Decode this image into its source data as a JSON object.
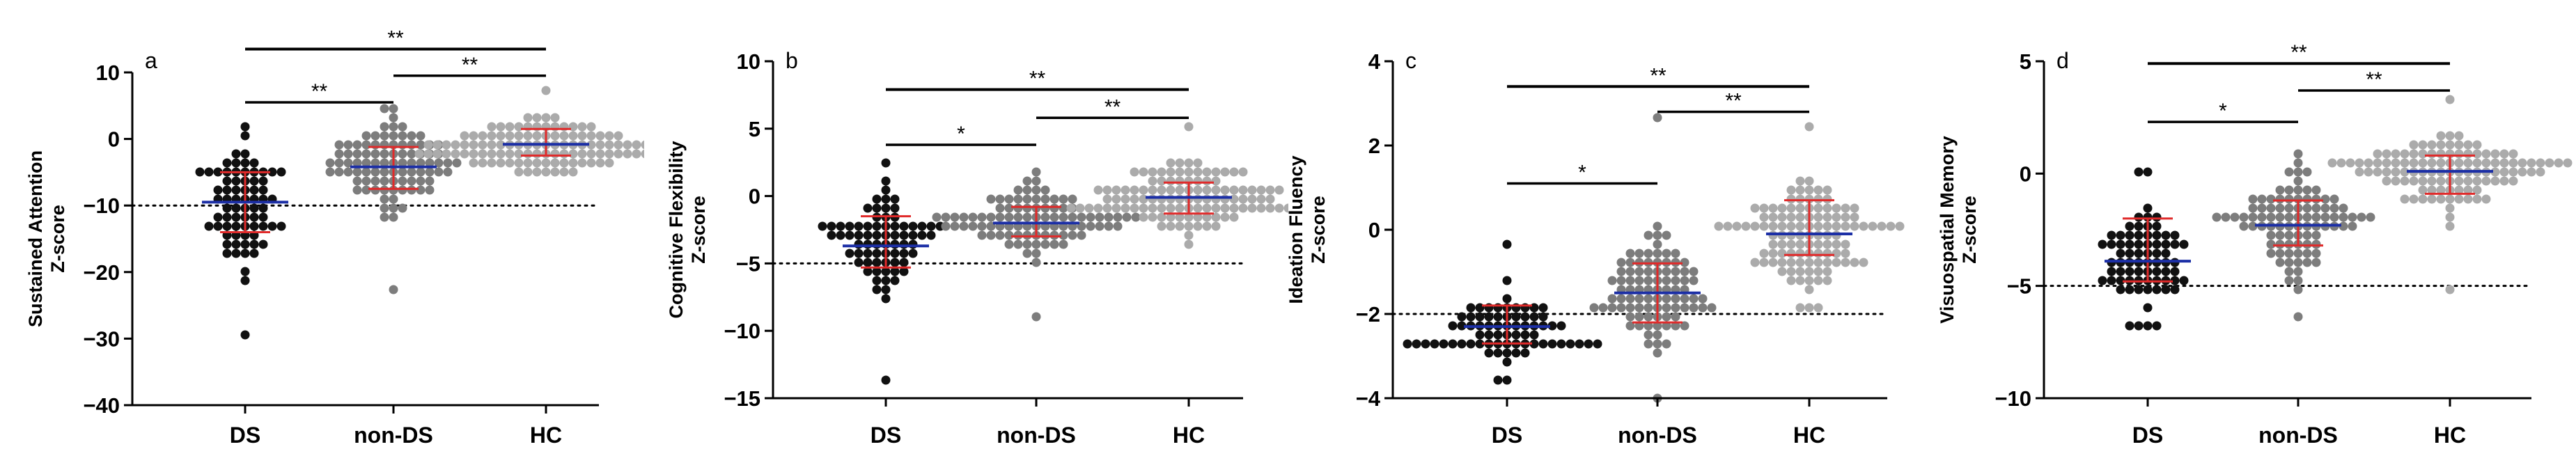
{
  "colors": {
    "DS": "#111111",
    "non-DS": "#7d7d7d",
    "HC": "#ababab",
    "mean_line": "#1c2fa6",
    "error_bar": "#e02a2a",
    "axis": "#000000"
  },
  "chart_data": [
    {
      "type": "scatter",
      "panel": "a",
      "ylabel_line1": "Sustained Attention",
      "ylabel_line2": "Z-score",
      "ylim": [
        -40,
        10
      ],
      "yticks": [
        10,
        0,
        -10,
        -20,
        -30,
        -40
      ],
      "ytick_labels": [
        "10",
        "0",
        "−10",
        "−20",
        "−30",
        "−40"
      ],
      "categories": [
        "DS",
        "non-DS",
        "HC"
      ],
      "reference_line": -10,
      "series": [
        {
          "name": "DS",
          "mean": -9.5,
          "sd_low": -14,
          "sd_high": -5,
          "min": -29.5,
          "max": 2.5,
          "n": 72
        },
        {
          "name": "non-DS",
          "mean": -4.2,
          "sd_low": -7.5,
          "sd_high": -1.2,
          "min": -22,
          "max": 4,
          "n": 92
        },
        {
          "name": "HC",
          "mean": -0.8,
          "sd_low": -2.5,
          "sd_high": 1.5,
          "min": -5,
          "max": 7.5,
          "n": 112
        }
      ],
      "significance": [
        {
          "from": "DS",
          "to": "non-DS",
          "label": "**",
          "y": 5.5
        },
        {
          "from": "non-DS",
          "to": "HC",
          "label": "**",
          "y": 9.5
        },
        {
          "from": "DS",
          "to": "HC",
          "label": "**",
          "y": 13.5
        }
      ]
    },
    {
      "type": "scatter",
      "panel": "b",
      "ylabel_line1": "Cognitive Flexibility",
      "ylabel_line2": "Z-score",
      "ylim": [
        -15,
        10
      ],
      "yticks": [
        10,
        5,
        0,
        -5,
        -10,
        -15
      ],
      "ytick_labels": [
        "10",
        "5",
        "0",
        "−5",
        "−10",
        "−15"
      ],
      "categories": [
        "DS",
        "non-DS",
        "HC"
      ],
      "reference_line": -5,
      "series": [
        {
          "name": "DS",
          "mean": -3.7,
          "sd_low": -5.3,
          "sd_high": -1.5,
          "min": -13.5,
          "max": 2.3,
          "n": 72
        },
        {
          "name": "non-DS",
          "mean": -2,
          "sd_low": -3,
          "sd_high": -0.8,
          "min": -9.2,
          "max": 1.8,
          "n": 92
        },
        {
          "name": "HC",
          "mean": -0.1,
          "sd_low": -1.3,
          "sd_high": 1,
          "min": -3.5,
          "max": 5.2,
          "n": 112
        }
      ],
      "significance": [
        {
          "from": "DS",
          "to": "non-DS",
          "label": "*",
          "y": 3.8
        },
        {
          "from": "non-DS",
          "to": "HC",
          "label": "**",
          "y": 5.8
        },
        {
          "from": "DS",
          "to": "HC",
          "label": "**",
          "y": 7.9
        }
      ]
    },
    {
      "type": "scatter",
      "panel": "c",
      "ylabel_line1": "Ideation Fluency",
      "ylabel_line2": "Z-score",
      "ylim": [
        -4,
        4
      ],
      "yticks": [
        4,
        2,
        0,
        -2,
        -4
      ],
      "ytick_labels": [
        "4",
        "2",
        "0",
        "−2",
        "−4"
      ],
      "categories": [
        "DS",
        "non-DS",
        "HC"
      ],
      "reference_line": -2,
      "series": [
        {
          "name": "DS",
          "mean": -2.3,
          "sd_low": -2.7,
          "sd_high": -1.8,
          "min": -3.5,
          "max": -0.3,
          "n": 72
        },
        {
          "name": "non-DS",
          "mean": -1.5,
          "sd_low": -2.2,
          "sd_high": -0.8,
          "min": -3.9,
          "max": 2.7,
          "n": 92
        },
        {
          "name": "HC",
          "mean": -0.1,
          "sd_low": -0.6,
          "sd_high": 0.7,
          "min": -1.8,
          "max": 2.5,
          "n": 112
        }
      ],
      "significance": [
        {
          "from": "DS",
          "to": "non-DS",
          "label": "*",
          "y": 1.1
        },
        {
          "from": "non-DS",
          "to": "HC",
          "label": "**",
          "y": 2.8
        },
        {
          "from": "DS",
          "to": "HC",
          "label": "**",
          "y": 3.4
        }
      ]
    },
    {
      "type": "scatter",
      "panel": "d",
      "ylabel_line1": "Visuospatial Memory",
      "ylabel_line2": "Z-score",
      "ylim": [
        -10,
        5
      ],
      "yticks": [
        5,
        0,
        -5,
        -10
      ],
      "ytick_labels": [
        "5",
        "0",
        "−5",
        "−10"
      ],
      "categories": [
        "DS",
        "non-DS",
        "HC"
      ],
      "reference_line": -5,
      "series": [
        {
          "name": "DS",
          "mean": -3.9,
          "sd_low": -4.8,
          "sd_high": -2,
          "min": -6.7,
          "max": 0.2,
          "n": 72
        },
        {
          "name": "non-DS",
          "mean": -2.3,
          "sd_low": -3.2,
          "sd_high": -1.2,
          "min": -6.5,
          "max": 1,
          "n": 92
        },
        {
          "name": "HC",
          "mean": 0.1,
          "sd_low": -0.9,
          "sd_high": 0.8,
          "min": -5,
          "max": 3.2,
          "n": 112
        }
      ],
      "significance": [
        {
          "from": "DS",
          "to": "non-DS",
          "label": "*",
          "y": 2.3
        },
        {
          "from": "non-DS",
          "to": "HC",
          "label": "**",
          "y": 3.7
        },
        {
          "from": "DS",
          "to": "HC",
          "label": "**",
          "y": 4.9
        }
      ]
    }
  ]
}
